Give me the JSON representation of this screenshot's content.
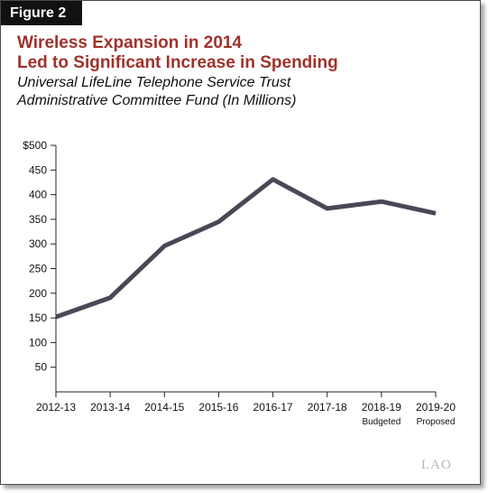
{
  "figure_label": "Figure 2",
  "title_line1": "Wireless Expansion in 2014",
  "title_line2": "Led to Significant Increase in Spending",
  "subtitle_line1": "Universal LifeLine Telephone Service Trust",
  "subtitle_line2": "Administrative Committee Fund (In Millions)",
  "logo_text": "LAO",
  "colors": {
    "title": "#a0322c",
    "line": "#4b4757",
    "frame": "#4a4a4a"
  },
  "chart_data": {
    "type": "line",
    "categories": [
      "2012-13",
      "2013-14",
      "2014-15",
      "2015-16",
      "2016-17",
      "2017-18",
      "2018-19",
      "2019-20"
    ],
    "category_sublabels": [
      "",
      "",
      "",
      "",
      "",
      "",
      "Budgeted",
      "Proposed"
    ],
    "series": [
      {
        "values": [
          152,
          191,
          296,
          345,
          431,
          372,
          386,
          362
        ]
      }
    ],
    "ylim": [
      0,
      500
    ],
    "yticks": [
      50,
      100,
      150,
      200,
      250,
      300,
      350,
      400,
      450,
      500
    ],
    "ytick_labels": [
      "50",
      "100",
      "150",
      "200",
      "250",
      "300",
      "350",
      "400",
      "450",
      "$500"
    ],
    "xlabel": "",
    "ylabel": "",
    "grid": false,
    "legend": "none"
  }
}
